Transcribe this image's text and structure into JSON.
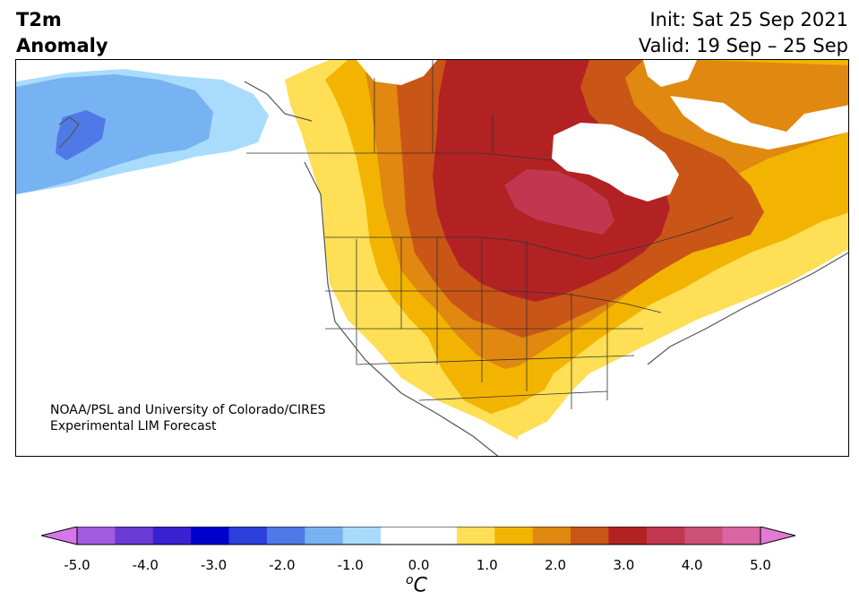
{
  "header": {
    "title_line1": "T2m",
    "title_line2": "Anomaly",
    "init": "Init: Sat 25 Sep 2021",
    "valid": "Valid: 19 Sep – 25 Sep"
  },
  "credit": {
    "line1": "NOAA/PSL and University of Colorado/CIRES",
    "line2": "Experimental LIM Forecast"
  },
  "colorbar": {
    "unit_symbol": "o",
    "unit_letter": "C",
    "ticks": [
      "-5.0",
      "-4.0",
      "-3.0",
      "-2.0",
      "-1.0",
      "0.0",
      "1.0",
      "2.0",
      "3.0",
      "4.0",
      "5.0"
    ],
    "colors": [
      "#d776e8",
      "#a15bdf",
      "#6a3ad6",
      "#3a20d2",
      "#0000cd",
      "#2a3fdc",
      "#4f79e6",
      "#77b2f2",
      "#a9dcfc",
      "#ffffff",
      "#ffffff",
      "#fedf55",
      "#f3b400",
      "#e0880f",
      "#c95516",
      "#b22222",
      "#c0374f",
      "#cd5078",
      "#d965a4",
      "#e27ad4"
    ],
    "min_color": "#d776e8",
    "max_color": "#e27ad4"
  },
  "legend_colors": {
    "c05": "#fedf55",
    "c10": "#f3b400",
    "c15": "#e0880f",
    "c20": "#c95516",
    "c25": "#b22222",
    "c30": "#c0374f",
    "m05": "#a9dcfc",
    "m10": "#77b2f2",
    "m15": "#4f79e6"
  }
}
